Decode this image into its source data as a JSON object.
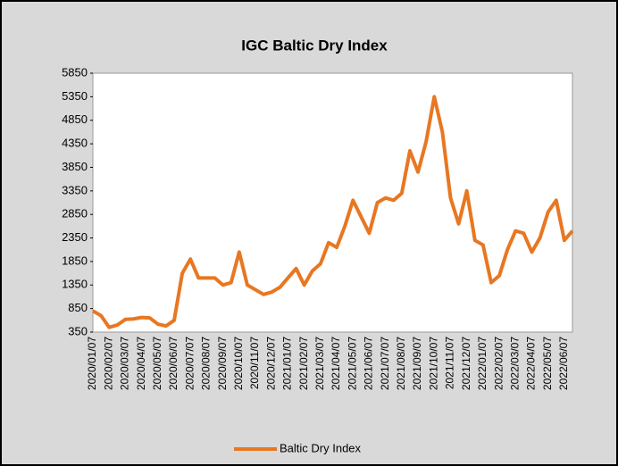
{
  "chart_data": {
    "type": "line",
    "title": "IGC Baltic Dry Index",
    "categories": [
      "2020/01/07",
      null,
      "2020/02/07",
      null,
      "2020/03/07",
      null,
      "2020/04/07",
      null,
      "2020/05/07",
      null,
      "2020/06/07",
      null,
      "2020/07/07",
      null,
      "2020/08/07",
      null,
      "2020/09/07",
      null,
      "2020/10/07",
      null,
      "2020/11/07",
      null,
      "2020/12/07",
      null,
      "2021/01/07",
      null,
      "2021/02/07",
      null,
      "2021/03/07",
      null,
      "2021/04/07",
      null,
      "2021/05/07",
      null,
      "2021/06/07",
      null,
      "2021/07/07",
      null,
      "2021/08/07",
      null,
      "2021/09/07",
      null,
      "2021/10/07",
      null,
      "2021/11/07",
      null,
      "2021/12/07",
      null,
      "2022/01/07",
      null,
      "2022/02/07",
      null,
      "2022/03/07",
      null,
      "2022/04/07",
      null,
      "2022/05/07",
      null,
      "2022/06/07",
      null
    ],
    "series": [
      {
        "name": "Baltic Dry Index",
        "color": "#e87722",
        "values": [
          800,
          700,
          450,
          500,
          620,
          630,
          660,
          650,
          520,
          480,
          600,
          1600,
          1900,
          1500,
          1500,
          1500,
          1350,
          1400,
          2050,
          1350,
          1250,
          1150,
          1200,
          1300,
          1500,
          1700,
          1350,
          1650,
          1800,
          2250,
          2150,
          2600,
          3150,
          2800,
          2450,
          3100,
          3200,
          3150,
          3300,
          4200,
          3750,
          4400,
          5350,
          4600,
          3200,
          2650,
          3350,
          2300,
          2200,
          1400,
          1550,
          2100,
          2500,
          2450,
          2050,
          2350,
          2900,
          3150,
          2300,
          2500
        ]
      }
    ],
    "ylim": [
      350,
      5850
    ],
    "yticks": [
      350,
      850,
      1350,
      1850,
      2350,
      2850,
      3350,
      3850,
      4350,
      4850,
      5350,
      5850
    ],
    "legend": "bottom"
  }
}
